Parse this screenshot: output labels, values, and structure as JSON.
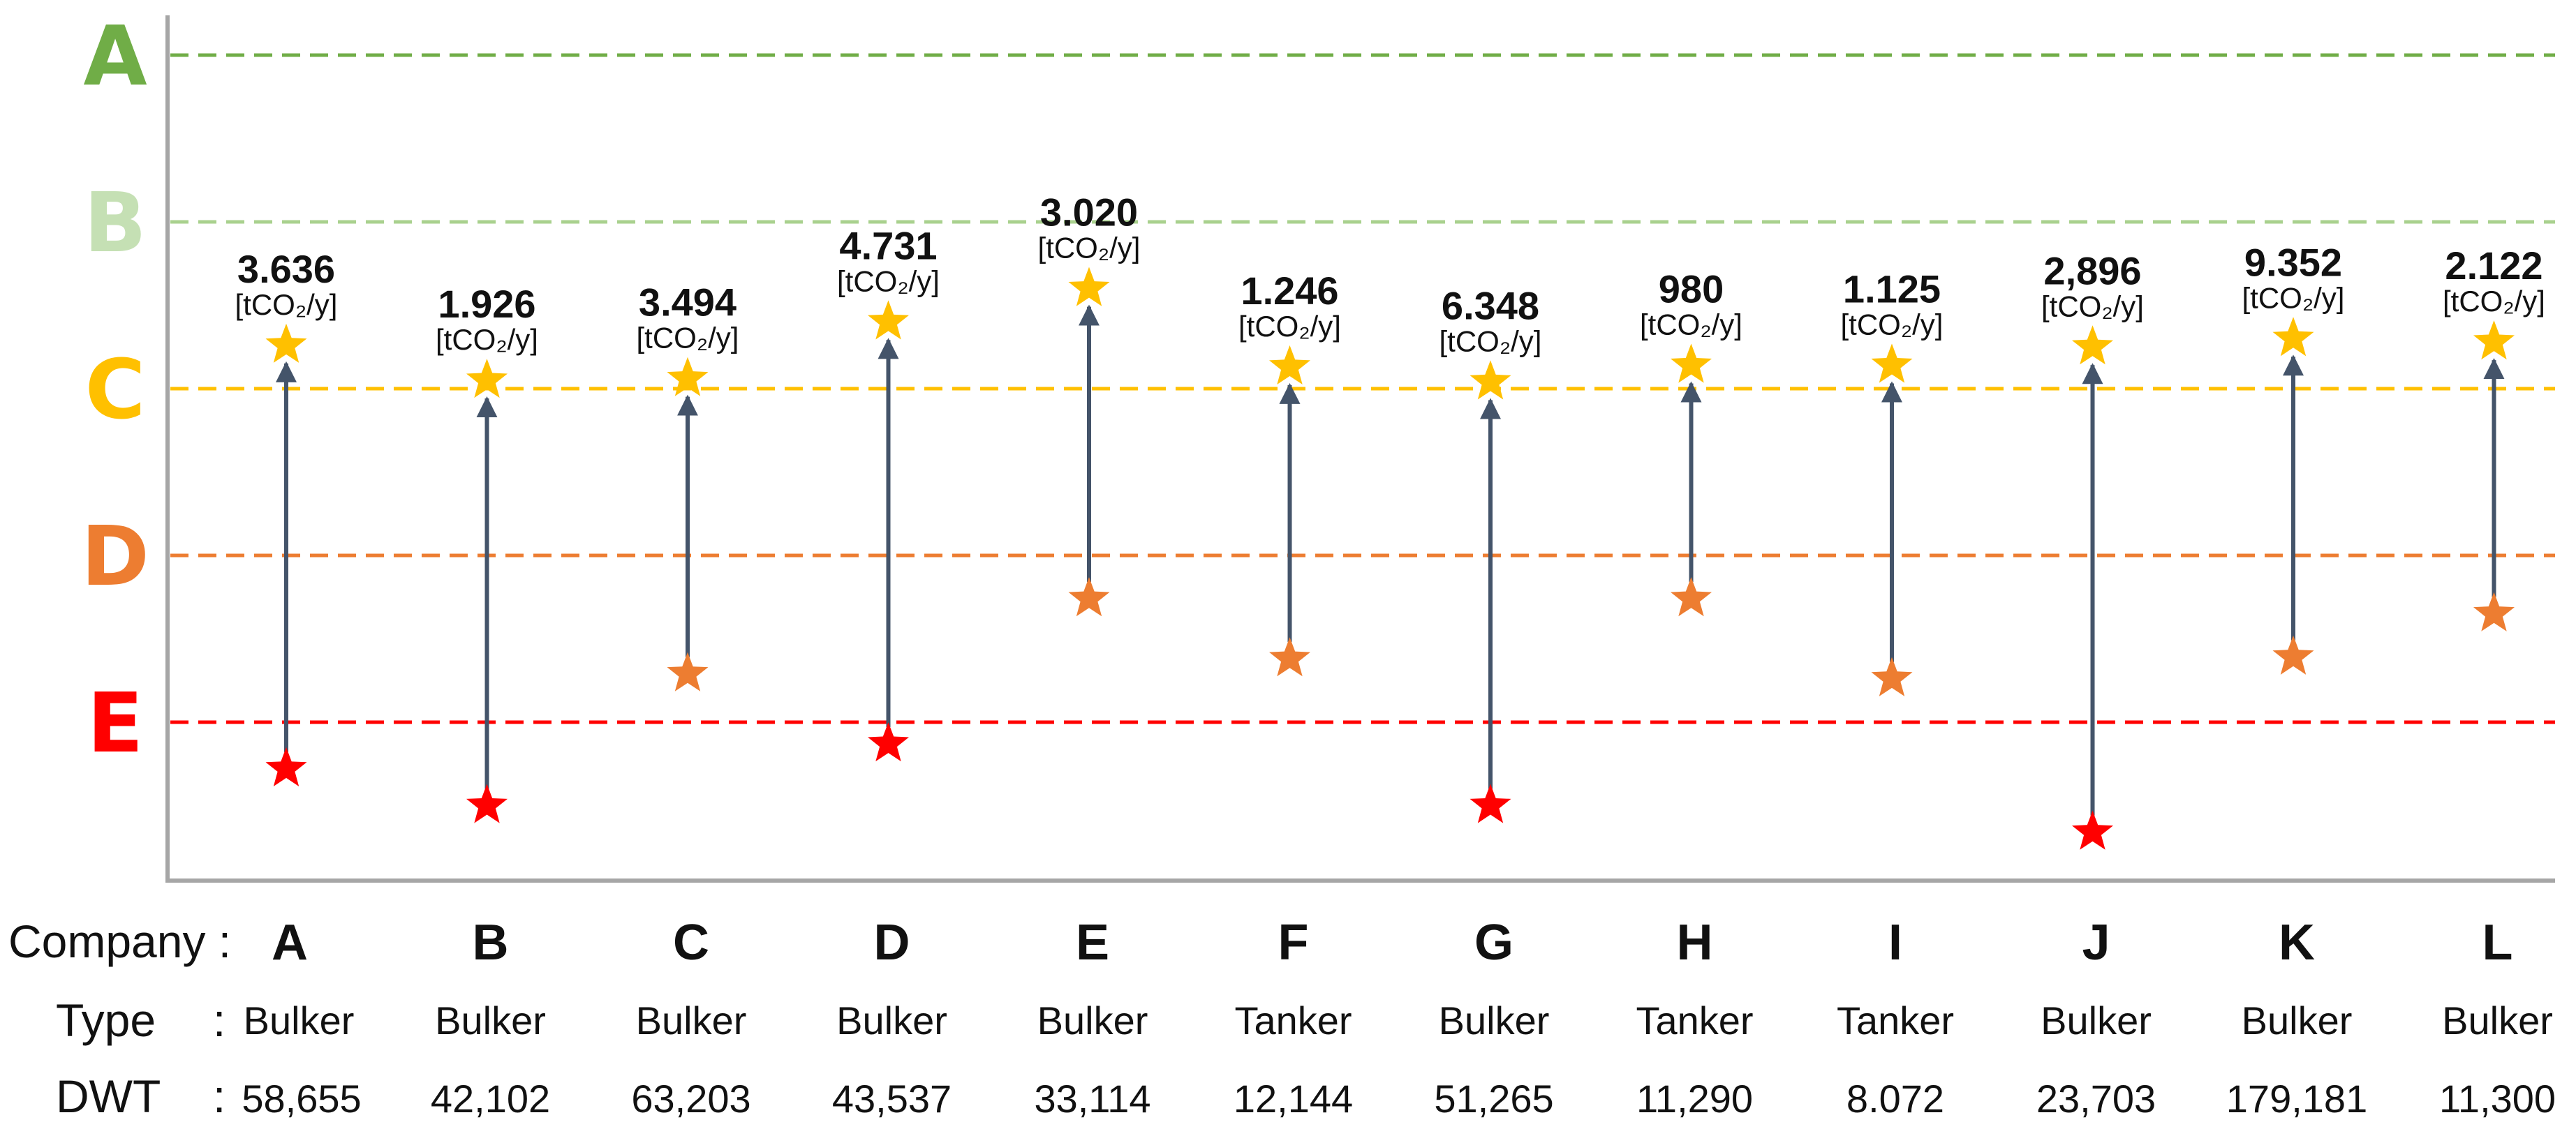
{
  "chart_data": {
    "type": "scatter",
    "title": "",
    "unit": "[tCO₂/y]",
    "grades": [
      {
        "label": "A",
        "color": "#70AD47",
        "line_color": "#70AD47"
      },
      {
        "label": "B",
        "color": "#C5E0B4",
        "line_color": "#A9D18E"
      },
      {
        "label": "C",
        "color": "#FFC000",
        "line_color": "#FFC000"
      },
      {
        "label": "D",
        "color": "#ED7D31",
        "line_color": "#ED7D31"
      },
      {
        "label": "E",
        "color": "#FF0000",
        "line_color": "#FF0000"
      }
    ],
    "table_labels": {
      "company": "Company :",
      "type": "Type",
      "dwt": "DWT",
      "colon": ":"
    },
    "points": [
      {
        "company": "A",
        "type": "Bulker",
        "dwt": "58,655",
        "reduction": "3.636",
        "from_rating": 5.28,
        "to_rating": 2.74,
        "from_grade": "E"
      },
      {
        "company": "B",
        "type": "Bulker",
        "dwt": "42,102",
        "reduction": "1.926",
        "from_rating": 5.5,
        "to_rating": 2.95,
        "from_grade": "E"
      },
      {
        "company": "C",
        "type": "Bulker",
        "dwt": "63,203",
        "reduction": "3.494",
        "from_rating": 4.71,
        "to_rating": 2.94,
        "from_grade": "D"
      },
      {
        "company": "D",
        "type": "Bulker",
        "dwt": "43,537",
        "reduction": "4.731",
        "from_rating": 5.13,
        "to_rating": 2.6,
        "from_grade": "E"
      },
      {
        "company": "E",
        "type": "Bulker",
        "dwt": "33,114",
        "reduction": "3.020",
        "from_rating": 4.26,
        "to_rating": 2.4,
        "from_grade": "D"
      },
      {
        "company": "F",
        "type": "Tanker",
        "dwt": "12,144",
        "reduction": "1.246",
        "from_rating": 4.62,
        "to_rating": 2.87,
        "from_grade": "D"
      },
      {
        "company": "G",
        "type": "Bulker",
        "dwt": "51,265",
        "reduction": "6.348",
        "from_rating": 5.5,
        "to_rating": 2.96,
        "from_grade": "E"
      },
      {
        "company": "H",
        "type": "Tanker",
        "dwt": "11,290",
        "reduction": "980",
        "from_rating": 4.26,
        "to_rating": 2.86,
        "from_grade": "D"
      },
      {
        "company": "I",
        "type": "Tanker",
        "dwt": "8.072",
        "reduction": "1.125",
        "from_rating": 4.74,
        "to_rating": 2.86,
        "from_grade": "D"
      },
      {
        "company": "J",
        "type": "Bulker",
        "dwt": "23,703",
        "reduction": "2,896",
        "from_rating": 5.66,
        "to_rating": 2.75,
        "from_grade": "E"
      },
      {
        "company": "K",
        "type": "Bulker",
        "dwt": "179,181",
        "reduction": "9.352",
        "from_rating": 4.61,
        "to_rating": 2.7,
        "from_grade": "D"
      },
      {
        "company": "L",
        "type": "Bulker",
        "dwt": "11,300",
        "reduction": "2.122",
        "from_rating": 4.35,
        "to_rating": 2.72,
        "from_grade": "D"
      }
    ]
  }
}
